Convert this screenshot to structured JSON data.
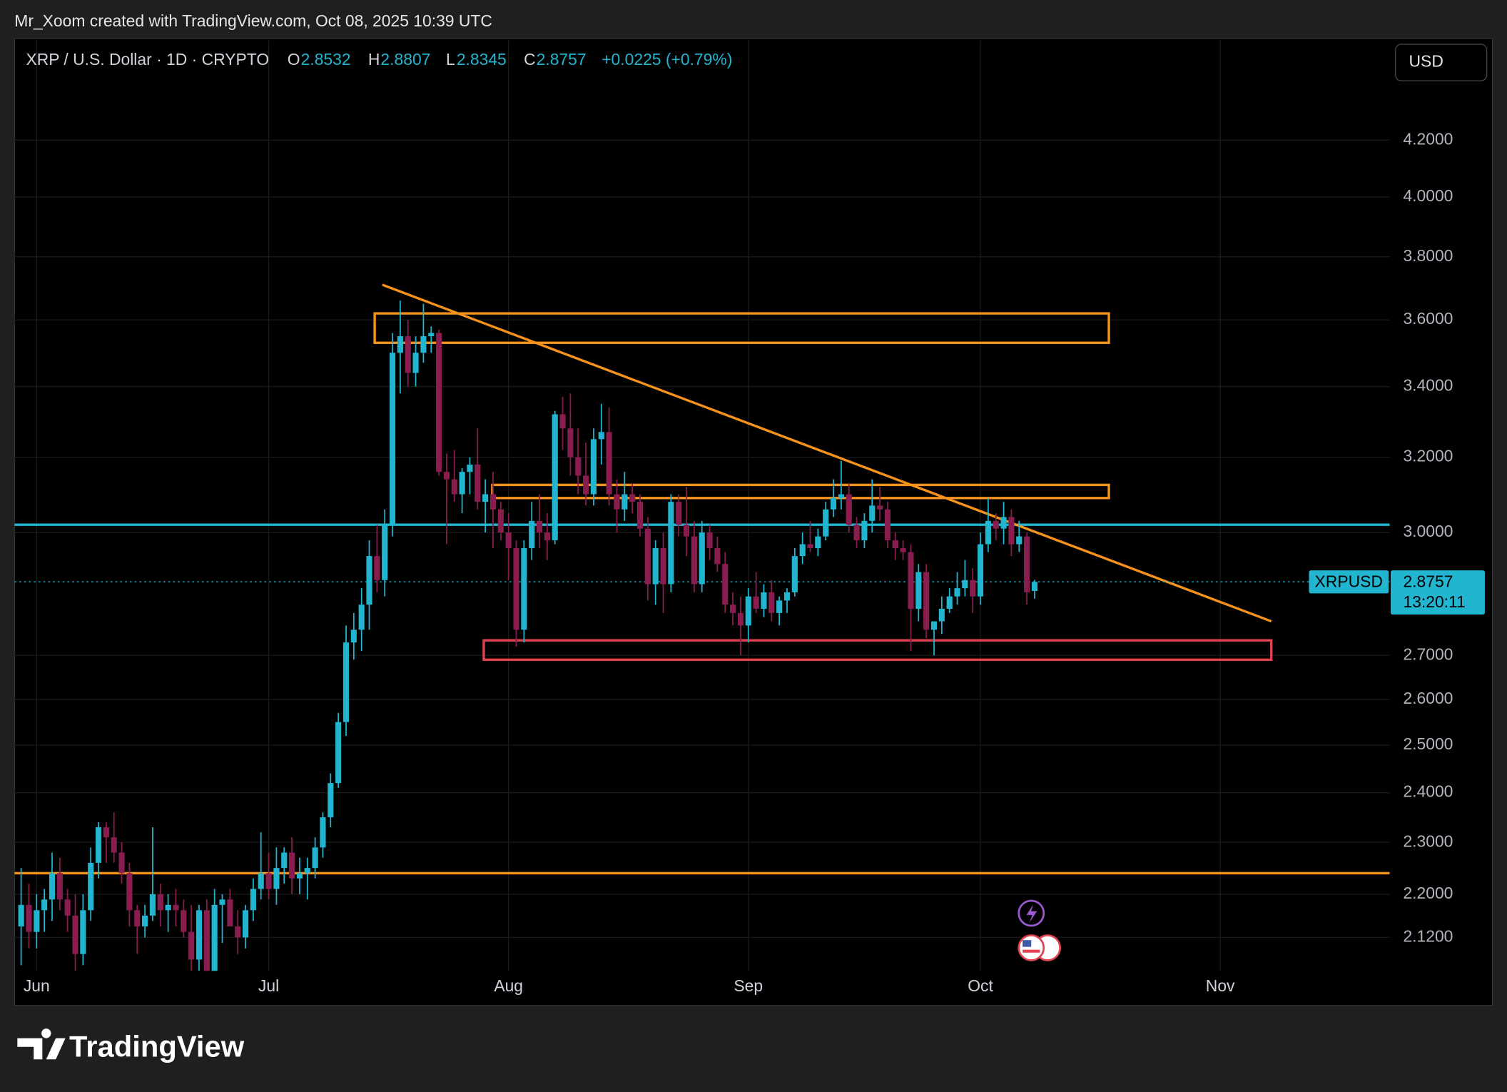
{
  "header": {
    "attribution": "Mr_Xoom created with TradingView.com, Oct 08, 2025 10:39 UTC",
    "brand": "TradingView"
  },
  "chart_data": {
    "type": "candlestick",
    "title": "XRP / U.S. Dollar · 1D · CRYPTO",
    "ohlc_labels": [
      "O",
      "H",
      "L",
      "C"
    ],
    "change_label": "+0.0225 (+0.79%)",
    "currency": "USD",
    "symbol": "XRPUSD",
    "countdown": "13:20:11",
    "up_color": "#22b5d0",
    "down_color": "#8a1d50",
    "x": [
      -2,
      -1,
      0,
      1,
      2,
      3,
      4,
      5,
      6,
      7,
      8,
      9,
      10,
      11,
      12,
      13,
      14,
      15,
      16,
      17,
      18,
      19,
      20,
      21,
      22,
      23,
      24,
      25,
      26,
      27,
      28,
      29,
      30,
      31,
      32,
      33,
      34,
      35,
      36,
      37,
      38,
      39,
      40,
      41,
      42,
      43,
      44,
      45,
      46,
      47,
      48,
      49,
      50,
      51,
      52,
      53,
      54,
      55,
      56,
      57,
      58,
      59,
      60,
      61,
      62,
      63,
      64,
      65,
      66,
      67,
      68,
      69,
      70,
      71,
      72,
      73,
      74,
      75,
      76,
      77,
      78,
      79,
      80,
      81,
      82,
      83,
      84,
      85,
      86,
      87,
      88,
      89,
      90,
      91,
      92,
      93,
      94,
      95,
      96,
      97,
      98,
      99,
      100,
      101,
      102,
      103,
      104,
      105,
      106,
      107,
      108,
      109,
      110,
      111,
      112,
      113,
      114,
      115,
      116,
      117,
      118,
      119,
      120,
      121,
      122,
      123,
      124,
      125,
      126,
      127,
      128,
      129
    ],
    "open": [
      2.14,
      2.18,
      2.13,
      2.17,
      2.19,
      2.24,
      2.19,
      2.16,
      2.09,
      2.17,
      2.26,
      2.33,
      2.31,
      2.28,
      2.24,
      2.17,
      2.14,
      2.16,
      2.2,
      2.17,
      2.18,
      2.17,
      2.13,
      2.08,
      2.17,
      2.05,
      2.18,
      2.19,
      2.14,
      2.12,
      2.17,
      2.21,
      2.24,
      2.21,
      2.25,
      2.28,
      2.23,
      2.24,
      2.25,
      2.29,
      2.35,
      2.42,
      2.55,
      2.73,
      2.76,
      2.82,
      2.94,
      2.88,
      3.02,
      3.5,
      3.55,
      3.44,
      3.5,
      3.55,
      3.56,
      3.16,
      3.14,
      3.1,
      3.16,
      3.18,
      3.08,
      3.1,
      3.06,
      3.0,
      2.96,
      2.76,
      2.96,
      3.03,
      3.0,
      2.98,
      3.32,
      3.28,
      3.2,
      3.15,
      3.1,
      3.25,
      3.27,
      3.1,
      3.06,
      3.1,
      3.08,
      3.01,
      2.87,
      2.96,
      2.87,
      3.08,
      3.02,
      2.99,
      2.87,
      3.0,
      2.96,
      2.92,
      2.82,
      2.8,
      2.77,
      2.84,
      2.81,
      2.85,
      2.8,
      2.83,
      2.85,
      2.94,
      2.97,
      2.96,
      2.99,
      3.06,
      3.09,
      3.1,
      3.02,
      2.98,
      3.03,
      3.07,
      3.06,
      2.98,
      2.96,
      2.95,
      2.81,
      2.9,
      2.76,
      2.78,
      2.81,
      2.84,
      2.86,
      2.88,
      2.84,
      2.97,
      3.03,
      3.01,
      3.04,
      2.97,
      2.99,
      2.8532
    ],
    "high": [
      2.25,
      2.22,
      2.2,
      2.21,
      2.28,
      2.27,
      2.21,
      2.2,
      2.2,
      2.29,
      2.34,
      2.34,
      2.36,
      2.3,
      2.26,
      2.18,
      2.18,
      2.33,
      2.22,
      2.2,
      2.21,
      2.19,
      2.18,
      2.18,
      2.19,
      2.21,
      2.2,
      2.21,
      2.17,
      2.18,
      2.23,
      2.32,
      2.28,
      2.29,
      2.29,
      2.31,
      2.27,
      2.27,
      2.31,
      2.36,
      2.44,
      2.57,
      2.77,
      2.8,
      2.86,
      2.98,
      3.02,
      3.06,
      3.56,
      3.66,
      3.6,
      3.55,
      3.65,
      3.58,
      3.57,
      3.21,
      3.22,
      3.17,
      3.2,
      3.28,
      3.14,
      3.16,
      3.08,
      3.05,
      2.98,
      2.98,
      3.08,
      3.1,
      3.05,
      3.33,
      3.37,
      3.38,
      3.28,
      3.24,
      3.28,
      3.35,
      3.34,
      3.14,
      3.16,
      3.13,
      3.1,
      3.04,
      2.98,
      3.0,
      3.1,
      3.1,
      3.12,
      3.03,
      3.03,
      3.02,
      2.99,
      2.95,
      2.85,
      2.84,
      2.86,
      2.9,
      2.87,
      2.88,
      2.84,
      2.86,
      2.96,
      3.0,
      3.03,
      3.01,
      3.08,
      3.14,
      3.19,
      3.13,
      3.04,
      3.05,
      3.14,
      3.12,
      3.08,
      3.0,
      2.98,
      2.97,
      2.92,
      2.92,
      2.78,
      2.84,
      2.86,
      2.9,
      2.93,
      2.91,
      3.0,
      3.09,
      3.05,
      3.08,
      3.06,
      3.03,
      3.0,
      2.8807
    ],
    "low": [
      2.07,
      2.1,
      2.1,
      2.13,
      2.15,
      2.17,
      2.13,
      2.06,
      2.07,
      2.15,
      2.23,
      2.26,
      2.26,
      2.22,
      2.14,
      2.09,
      2.12,
      2.15,
      2.14,
      2.13,
      2.14,
      2.12,
      2.06,
      2.06,
      2.06,
      2.06,
      2.11,
      2.14,
      2.09,
      2.1,
      2.15,
      2.19,
      2.19,
      2.18,
      2.22,
      2.2,
      2.2,
      2.19,
      2.23,
      2.27,
      2.33,
      2.41,
      2.52,
      2.69,
      2.71,
      2.76,
      2.85,
      2.84,
      2.99,
      3.38,
      3.4,
      3.4,
      3.47,
      3.5,
      3.15,
      2.97,
      3.08,
      3.05,
      3.1,
      3.06,
      3.0,
      2.96,
      2.98,
      2.88,
      2.72,
      2.73,
      2.93,
      2.96,
      2.93,
      2.97,
      3.22,
      3.15,
      3.1,
      3.07,
      3.07,
      3.18,
      3.07,
      3.0,
      3.03,
      3.05,
      2.99,
      2.83,
      2.82,
      2.8,
      2.85,
      2.99,
      2.94,
      2.85,
      2.85,
      2.93,
      2.9,
      2.8,
      2.77,
      2.7,
      2.73,
      2.8,
      2.79,
      2.78,
      2.77,
      2.8,
      2.84,
      2.92,
      2.95,
      2.94,
      2.98,
      3.04,
      3.06,
      3.0,
      2.96,
      2.96,
      3.0,
      3.03,
      2.96,
      2.93,
      2.93,
      2.71,
      2.78,
      2.74,
      2.7,
      2.75,
      2.8,
      2.82,
      2.84,
      2.8,
      2.82,
      2.95,
      2.98,
      2.97,
      2.94,
      2.95,
      2.82,
      2.8345
    ],
    "close": [
      2.18,
      2.13,
      2.17,
      2.19,
      2.24,
      2.19,
      2.16,
      2.09,
      2.17,
      2.26,
      2.33,
      2.31,
      2.28,
      2.24,
      2.17,
      2.14,
      2.16,
      2.2,
      2.17,
      2.18,
      2.17,
      2.13,
      2.08,
      2.17,
      2.05,
      2.18,
      2.19,
      2.14,
      2.12,
      2.17,
      2.21,
      2.24,
      2.21,
      2.25,
      2.28,
      2.23,
      2.24,
      2.25,
      2.29,
      2.35,
      2.42,
      2.55,
      2.73,
      2.76,
      2.82,
      2.94,
      2.88,
      3.02,
      3.5,
      3.55,
      3.44,
      3.5,
      3.55,
      3.56,
      3.16,
      3.14,
      3.1,
      3.16,
      3.18,
      3.08,
      3.1,
      3.06,
      3.0,
      2.96,
      2.76,
      2.96,
      3.03,
      3.0,
      2.98,
      3.32,
      3.28,
      3.2,
      3.15,
      3.1,
      3.25,
      3.27,
      3.1,
      3.06,
      3.1,
      3.08,
      3.01,
      2.87,
      2.96,
      2.87,
      3.08,
      3.02,
      2.99,
      2.87,
      3.0,
      2.96,
      2.92,
      2.82,
      2.8,
      2.77,
      2.84,
      2.81,
      2.85,
      2.8,
      2.83,
      2.85,
      2.94,
      2.97,
      2.96,
      2.99,
      3.06,
      3.09,
      3.1,
      3.02,
      2.98,
      3.03,
      3.07,
      3.06,
      2.98,
      2.96,
      2.95,
      2.81,
      2.9,
      2.76,
      2.78,
      2.81,
      2.84,
      2.86,
      2.88,
      2.84,
      2.97,
      3.03,
      3.01,
      3.04,
      2.97,
      2.99,
      2.85,
      2.8757
    ],
    "xlim": [
      -2.86,
      174.9
    ],
    "xticks": [
      {
        "value": 0,
        "label": "Jun"
      },
      {
        "value": 30,
        "label": "Jul"
      },
      {
        "value": 61,
        "label": "Aug"
      },
      {
        "value": 92,
        "label": "Sep"
      },
      {
        "value": 122,
        "label": "Oct"
      },
      {
        "value": 153,
        "label": "Nov"
      }
    ],
    "ylim": [
      2.06,
      4.575
    ],
    "log_scale": true,
    "grid": true,
    "yticks": [
      {
        "value": 2.12,
        "label": "2.1200"
      },
      {
        "value": 2.2,
        "label": "2.2000"
      },
      {
        "value": 2.3,
        "label": "2.3000"
      },
      {
        "value": 2.4,
        "label": "2.4000"
      },
      {
        "value": 2.5,
        "label": "2.5000"
      },
      {
        "value": 2.6,
        "label": "2.6000"
      },
      {
        "value": 2.7,
        "label": "2.7000"
      },
      {
        "value": 3,
        "label": "3.0000"
      },
      {
        "value": 3.2,
        "label": "3.2000"
      },
      {
        "value": 3.4,
        "label": "3.4000"
      },
      {
        "value": 3.6,
        "label": "3.6000"
      },
      {
        "value": 3.8,
        "label": "3.8000"
      },
      {
        "value": 4,
        "label": "4.0000"
      },
      {
        "value": 4.2,
        "label": "4.2000"
      }
    ],
    "drawings": [
      {
        "type": "hline",
        "value": 3.02,
        "color": "#1fb8d3"
      },
      {
        "type": "hline",
        "value": 2.24,
        "color": "#f7931a"
      },
      {
        "type": "box",
        "x": [
          43.7,
          138.6
        ],
        "y": [
          3.53,
          3.62
        ],
        "color": "#f7931a"
      },
      {
        "type": "box",
        "x": [
          58.9,
          138.6
        ],
        "y": [
          3.09,
          3.125
        ],
        "color": "#f7931a"
      },
      {
        "type": "box",
        "x": [
          57.8,
          159.6
        ],
        "y": [
          2.69,
          2.735
        ],
        "color": "#e0424f"
      },
      {
        "type": "trendline",
        "x": [
          44.7,
          159.6
        ],
        "y": [
          3.71,
          2.78
        ],
        "color": "#f7931a"
      }
    ]
  }
}
